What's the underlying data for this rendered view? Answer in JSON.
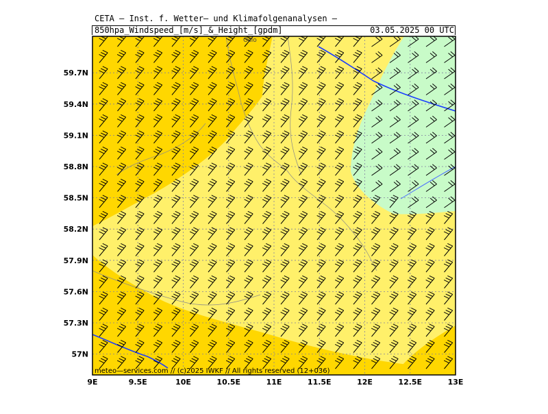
{
  "header": {
    "institute": "CETA — Inst. f. Wetter— und Klimafolgenanalysen —",
    "parameter": "850hpa_Windspeed_[m/s]_&_Height_[gpdm]",
    "datetime": "03.05.2025 00 UTC"
  },
  "map": {
    "lon_range": [
      9,
      13
    ],
    "lat_range": [
      56.8,
      60.05
    ],
    "lat_ticks": [
      "57N",
      "57.3N",
      "57.6N",
      "57.9N",
      "58.2N",
      "58.5N",
      "58.8N",
      "59.1N",
      "59.4N",
      "59.7N"
    ],
    "lat_values": [
      57.0,
      57.3,
      57.6,
      57.9,
      58.2,
      58.5,
      58.8,
      59.1,
      59.4,
      59.7
    ],
    "lon_ticks": [
      "9E",
      "9.5E",
      "10E",
      "10.5E",
      "11E",
      "11.5E",
      "12E",
      "12.5E",
      "13E"
    ],
    "lon_values": [
      9,
      9.5,
      10,
      10.5,
      11,
      11.5,
      12,
      12.5,
      13
    ],
    "city_label": "Oslo",
    "colors": {
      "high_wind": "#ffd700",
      "mid_wind": "#fff06a",
      "low_wind": "#c8fbc8",
      "contour": "#1a3cff",
      "barb": "#000000",
      "grid": "#8080a0"
    }
  },
  "footer": {
    "copyright": "meteo—services.com // (c)2025 IWKF // All rights reserved (12+036)"
  }
}
